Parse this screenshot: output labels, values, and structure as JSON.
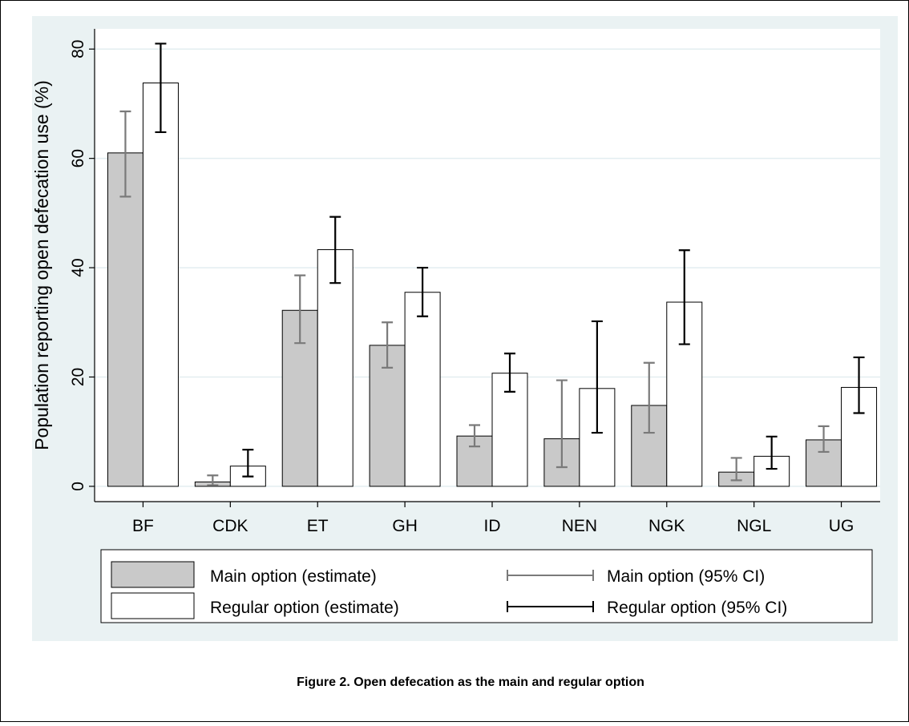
{
  "chart_data": {
    "type": "bar",
    "y_label": "Population reporting open defecation use (%)",
    "caption": "Figure 2. Open defecation as the main and regular option",
    "categories": [
      "BF",
      "CDK",
      "ET",
      "GH",
      "ID",
      "NEN",
      "NGK",
      "NGL",
      "UG"
    ],
    "series": [
      {
        "name": "Main option (estimate)",
        "color": "#c9c9c9",
        "ci_name": "Main option (95% CI)",
        "ci_color": "#7a7a7a",
        "values": [
          61,
          0.8,
          32.2,
          25.8,
          9.2,
          8.7,
          14.8,
          2.6,
          8.5
        ],
        "lower": [
          53,
          0.2,
          26.2,
          21.7,
          7.3,
          3.5,
          9.8,
          1.1,
          6.3
        ],
        "upper": [
          68.6,
          2,
          38.6,
          30,
          11.2,
          19.4,
          22.6,
          5.2,
          11
        ]
      },
      {
        "name": "Regular option (estimate)",
        "color": "#ffffff",
        "ci_name": "Regular option (95% CI)",
        "ci_color": "#000000",
        "values": [
          73.8,
          3.7,
          43.3,
          35.5,
          20.7,
          17.9,
          33.7,
          5.5,
          18.1
        ],
        "lower": [
          64.8,
          1.8,
          37.2,
          31.1,
          17.3,
          9.8,
          26,
          3.2,
          13.4
        ],
        "upper": [
          81,
          6.7,
          49.3,
          40,
          24.3,
          30.2,
          43.2,
          9.1,
          23.6
        ]
      }
    ],
    "ylim": [
      -2.8,
      83.7
    ],
    "yticks": [
      0,
      20,
      40,
      60,
      80
    ],
    "grid": true
  }
}
